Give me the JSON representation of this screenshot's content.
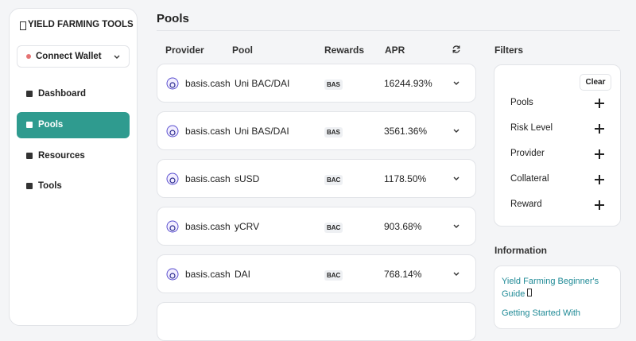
{
  "sidebar": {
    "title": "YIELD FARMING TOOLS",
    "wallet_button": "Connect Wallet",
    "nav": [
      {
        "label": "Dashboard",
        "active": false
      },
      {
        "label": "Pools",
        "active": true
      },
      {
        "label": "Resources",
        "active": false
      },
      {
        "label": "Tools",
        "active": false
      }
    ]
  },
  "main": {
    "title": "Pools",
    "columns": [
      "Provider",
      "Pool",
      "Rewards",
      "APR"
    ],
    "rows": [
      [
        "basis.cash",
        "Uni BAC/DAI",
        "BAS",
        "16244.93%"
      ],
      [
        "basis.cash",
        "Uni BAS/DAI",
        "BAS",
        "3561.36%"
      ],
      [
        "basis.cash",
        "sUSD",
        "BAC",
        "1178.50%"
      ],
      [
        "basis.cash",
        "yCRV",
        "BAC",
        "903.68%"
      ],
      [
        "basis.cash",
        "DAI",
        "BAC",
        "768.14%"
      ]
    ]
  },
  "filters": {
    "title": "Filters",
    "clear": "Clear",
    "items": [
      "Pools",
      "Risk Level",
      "Provider",
      "Collateral",
      "Reward"
    ]
  },
  "information": {
    "title": "Information",
    "links": [
      "Yield Farming Beginner's Guide",
      "Getting Started With"
    ]
  }
}
